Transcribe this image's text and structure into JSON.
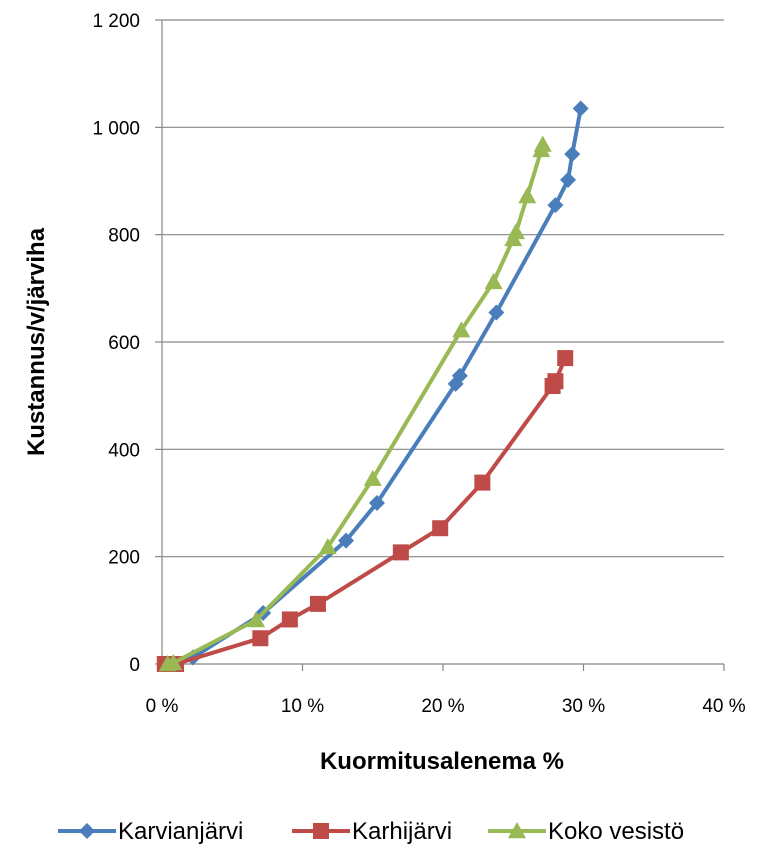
{
  "chart_data": {
    "type": "line",
    "title": "",
    "xlabel": "Kuormitusalenema %",
    "ylabel": "Kustannus/v/järviha",
    "xlim": [
      0,
      40
    ],
    "ylim": [
      0,
      1200
    ],
    "x_ticks": [
      0,
      10,
      20,
      30,
      40
    ],
    "x_tick_labels": [
      "0 %",
      "10 %",
      "20 %",
      "30 %",
      "40 %"
    ],
    "y_ticks": [
      0,
      200,
      400,
      600,
      800,
      1000,
      1200
    ],
    "y_tick_labels": [
      "0",
      "200",
      "400",
      "600",
      "800",
      "1 000",
      "1 200"
    ],
    "grid": "horizontal",
    "legend": "bottom",
    "series": [
      {
        "name": "Karvianjärvi",
        "color": "#4a7ebb",
        "marker": "diamond",
        "points": [
          [
            0.5,
            0
          ],
          [
            2.2,
            12
          ],
          [
            7.2,
            95
          ],
          [
            13.1,
            230
          ],
          [
            15.3,
            300
          ],
          [
            20.9,
            522
          ],
          [
            21.2,
            537
          ],
          [
            23.8,
            655
          ],
          [
            28.0,
            855
          ],
          [
            28.9,
            902
          ],
          [
            29.2,
            950
          ],
          [
            29.8,
            1035
          ]
        ]
      },
      {
        "name": "Karhijärvi",
        "color": "#be4b48",
        "marker": "square",
        "points": [
          [
            0.2,
            0
          ],
          [
            1.0,
            0
          ],
          [
            7.0,
            48
          ],
          [
            9.1,
            83
          ],
          [
            11.1,
            112
          ],
          [
            17.0,
            208
          ],
          [
            19.8,
            253
          ],
          [
            22.8,
            338
          ],
          [
            27.8,
            518
          ],
          [
            28.0,
            527
          ],
          [
            28.7,
            570
          ]
        ]
      },
      {
        "name": "Koko vesistö",
        "color": "#98b954",
        "marker": "triangle",
        "points": [
          [
            0.4,
            0
          ],
          [
            0.8,
            2
          ],
          [
            6.7,
            82
          ],
          [
            11.8,
            218
          ],
          [
            15.0,
            345
          ],
          [
            21.3,
            622
          ],
          [
            23.6,
            712
          ],
          [
            25.0,
            792
          ],
          [
            25.2,
            805
          ],
          [
            26.0,
            872
          ],
          [
            27.0,
            958
          ],
          [
            27.1,
            968
          ]
        ]
      }
    ]
  }
}
